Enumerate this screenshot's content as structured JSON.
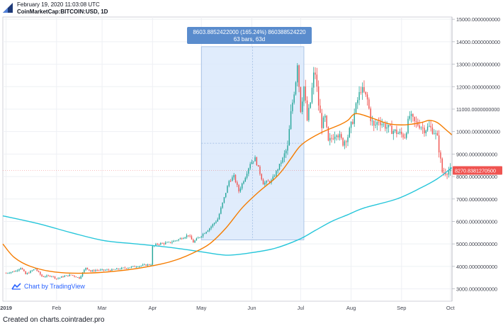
{
  "header": {
    "timestamp": "February 19, 2020 11:03:08 UTC",
    "symbol": "CoinMarketCap:BITCOIN:USD, 1D"
  },
  "measure_tooltip": {
    "line1": "8603.8852422000 (165.24%) 860388524220",
    "line2": "63 bars, 63d"
  },
  "price_tag": "8270.8381270500",
  "branding": {
    "label": "Chart by TradingView"
  },
  "footer": "Created on charts.cointrader.pro",
  "colors": {
    "up": "#26a69a",
    "down": "#ef5350",
    "ma_short": "#f57c00",
    "ma_long": "#26c6da",
    "measure_fill": "#dbe9fb",
    "tooltip_bg": "#5a8ccd",
    "price_tag": "#ef5350"
  },
  "chart_data": {
    "type": "candlestick",
    "x_axis": {
      "labels": [
        {
          "label": "2019",
          "day": 0
        },
        {
          "label": "Feb",
          "day": 31
        },
        {
          "label": "Mar",
          "day": 59
        },
        {
          "label": "Apr",
          "day": 90
        },
        {
          "label": "May",
          "day": 120
        },
        {
          "label": "Jun",
          "day": 151
        },
        {
          "label": "Jul",
          "day": 181
        },
        {
          "label": "Aug",
          "day": 212
        },
        {
          "label": "Sep",
          "day": 243
        },
        {
          "label": "Oct",
          "day": 273
        }
      ],
      "range": [
        -2,
        274
      ]
    },
    "y_axis": {
      "range": [
        2450,
        15100
      ],
      "ticks": [
        3000,
        4000,
        5000,
        6000,
        7000,
        8000,
        9000,
        10000,
        11000,
        12000,
        13000,
        14000,
        15000
      ],
      "tick_labels": [
        "3000.0000000000",
        "4000.0000000000",
        "5000.0000000000",
        "6000.0000000000",
        "7000.0000000000",
        "8000.0000000000",
        "9000.0000000000",
        "10000.0000000000",
        "11000.0000000000",
        "12000.0000000000",
        "13000.0000000000",
        "14000.0000000000",
        "15000.0000000000"
      ],
      "position": "right"
    },
    "close_anchors": [
      [
        0,
        3700
      ],
      [
        6,
        3800
      ],
      [
        9,
        3950
      ],
      [
        12,
        3650
      ],
      [
        18,
        3900
      ],
      [
        22,
        3550
      ],
      [
        28,
        3580
      ],
      [
        31,
        3450
      ],
      [
        35,
        3550
      ],
      [
        40,
        3620
      ],
      [
        45,
        3480
      ],
      [
        49,
        3950
      ],
      [
        52,
        3780
      ],
      [
        55,
        3830
      ],
      [
        59,
        3830
      ],
      [
        65,
        3840
      ],
      [
        70,
        3900
      ],
      [
        75,
        3950
      ],
      [
        80,
        4010
      ],
      [
        85,
        4050
      ],
      [
        89,
        4090
      ],
      [
        90,
        4880
      ],
      [
        93,
        5000
      ],
      [
        100,
        5050
      ],
      [
        106,
        5200
      ],
      [
        112,
        5400
      ],
      [
        115,
        5080
      ],
      [
        120,
        5380
      ],
      [
        125,
        5700
      ],
      [
        130,
        6100
      ],
      [
        134,
        7050
      ],
      [
        137,
        7800
      ],
      [
        140,
        8000
      ],
      [
        143,
        7350
      ],
      [
        147,
        8000
      ],
      [
        150,
        8600
      ],
      [
        153,
        8800
      ],
      [
        156,
        8150
      ],
      [
        158,
        7700
      ],
      [
        163,
        7800
      ],
      [
        166,
        8200
      ],
      [
        170,
        8800
      ],
      [
        173,
        9300
      ],
      [
        175,
        10800
      ],
      [
        178,
        12300
      ],
      [
        179,
        13100
      ],
      [
        181,
        11000
      ],
      [
        183,
        12000
      ],
      [
        185,
        10500
      ],
      [
        187,
        11300
      ],
      [
        189,
        12500
      ],
      [
        190,
        12600
      ],
      [
        192,
        11200
      ],
      [
        194,
        10300
      ],
      [
        196,
        10600
      ],
      [
        198,
        9500
      ],
      [
        200,
        9700
      ],
      [
        203,
        10000
      ],
      [
        207,
        9500
      ],
      [
        210,
        9800
      ],
      [
        213,
        10500
      ],
      [
        216,
        11400
      ],
      [
        218,
        11900
      ],
      [
        220,
        11700
      ],
      [
        222,
        11400
      ],
      [
        224,
        10600
      ],
      [
        226,
        10200
      ],
      [
        229,
        10500
      ],
      [
        232,
        10300
      ],
      [
        236,
        10100
      ],
      [
        239,
        10000
      ],
      [
        242,
        9900
      ],
      [
        245,
        9800
      ],
      [
        248,
        10700
      ],
      [
        251,
        10400
      ],
      [
        254,
        10300
      ],
      [
        257,
        10100
      ],
      [
        260,
        10200
      ],
      [
        263,
        10000
      ],
      [
        265,
        9700
      ],
      [
        267,
        8700
      ],
      [
        268,
        8200
      ],
      [
        270,
        8200
      ],
      [
        273,
        8271
      ]
    ],
    "ma_short": [
      [
        -2,
        5000
      ],
      [
        5,
        4400
      ],
      [
        15,
        4000
      ],
      [
        30,
        3750
      ],
      [
        50,
        3700
      ],
      [
        75,
        3850
      ],
      [
        95,
        4100
      ],
      [
        105,
        4300
      ],
      [
        115,
        4600
      ],
      [
        125,
        5000
      ],
      [
        135,
        5700
      ],
      [
        145,
        6600
      ],
      [
        155,
        7300
      ],
      [
        165,
        7900
      ],
      [
        170,
        8300
      ],
      [
        175,
        8800
      ],
      [
        180,
        9300
      ],
      [
        185,
        9600
      ],
      [
        195,
        10000
      ],
      [
        205,
        10300
      ],
      [
        210,
        10500
      ],
      [
        215,
        10800
      ],
      [
        225,
        10600
      ],
      [
        235,
        10350
      ],
      [
        245,
        10300
      ],
      [
        255,
        10400
      ],
      [
        260,
        10500
      ],
      [
        265,
        10400
      ],
      [
        270,
        10100
      ],
      [
        274,
        9850
      ]
    ],
    "ma_long": [
      [
        -2,
        6250
      ],
      [
        20,
        5900
      ],
      [
        40,
        5500
      ],
      [
        60,
        5150
      ],
      [
        80,
        5000
      ],
      [
        100,
        4850
      ],
      [
        120,
        4650
      ],
      [
        135,
        4500
      ],
      [
        150,
        4600
      ],
      [
        165,
        4800
      ],
      [
        180,
        5200
      ],
      [
        190,
        5600
      ],
      [
        200,
        6000
      ],
      [
        210,
        6300
      ],
      [
        220,
        6600
      ],
      [
        240,
        7000
      ],
      [
        255,
        7500
      ],
      [
        265,
        7900
      ],
      [
        274,
        8400
      ]
    ],
    "measure_range": {
      "start_day": 120,
      "end_day": 183,
      "low": 5180,
      "high": 13780
    },
    "last_price": 8270.83812705
  }
}
